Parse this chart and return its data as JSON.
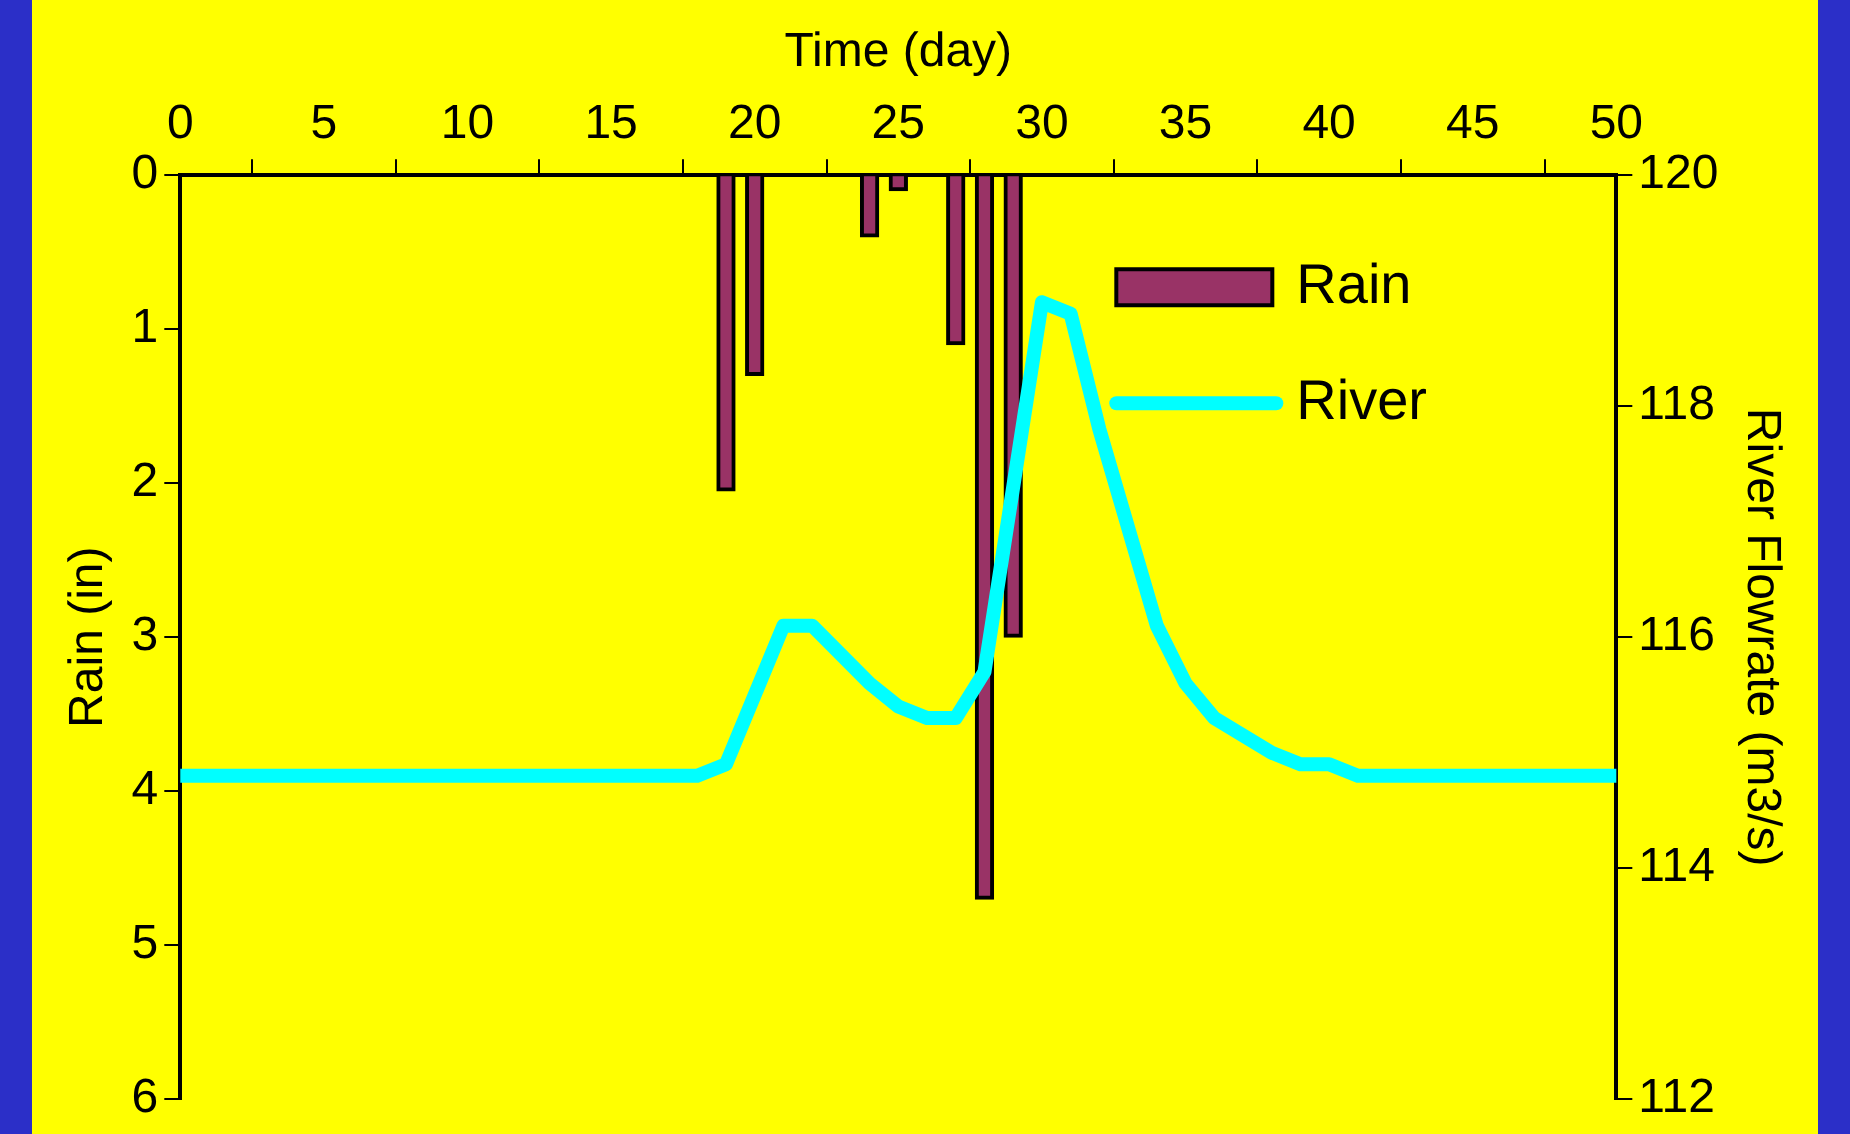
{
  "chart_data": {
    "type": "bar",
    "xlabel": "Time (day)",
    "ylabel": "Rain (in)",
    "y2label": "River Flowrate (m3/s)",
    "xlim": [
      0,
      50
    ],
    "xticks": [
      0,
      5,
      10,
      15,
      20,
      25,
      30,
      35,
      40,
      45,
      50
    ],
    "ylim": [
      6,
      0
    ],
    "yticks": [
      0,
      1,
      2,
      3,
      4,
      5,
      6
    ],
    "y2lim": [
      112,
      120
    ],
    "y2ticks": [
      112,
      114,
      116,
      118,
      120
    ],
    "legend": "top right",
    "grid": false,
    "series": [
      {
        "name": "Rain",
        "color": "#993366",
        "x": [
          19,
          20,
          24,
          25,
          27,
          28,
          29
        ],
        "values": [
          2.05,
          1.3,
          0.4,
          0.1,
          1.1,
          4.7,
          3.0
        ]
      },
      {
        "name": "River",
        "type": "line",
        "axis": "y2",
        "color": "#00ffff",
        "x": [
          0,
          18,
          19,
          21,
          22,
          24,
          25,
          26,
          27,
          28,
          30,
          31,
          32,
          34,
          35,
          36,
          38,
          39,
          40,
          41,
          50
        ],
        "values": [
          114.8,
          114.8,
          114.9,
          116.1,
          116.1,
          115.6,
          115.4,
          115.3,
          115.3,
          115.7,
          118.9,
          118.8,
          117.8,
          116.1,
          115.6,
          115.3,
          115.0,
          114.9,
          114.9,
          114.8,
          114.8
        ]
      }
    ]
  }
}
